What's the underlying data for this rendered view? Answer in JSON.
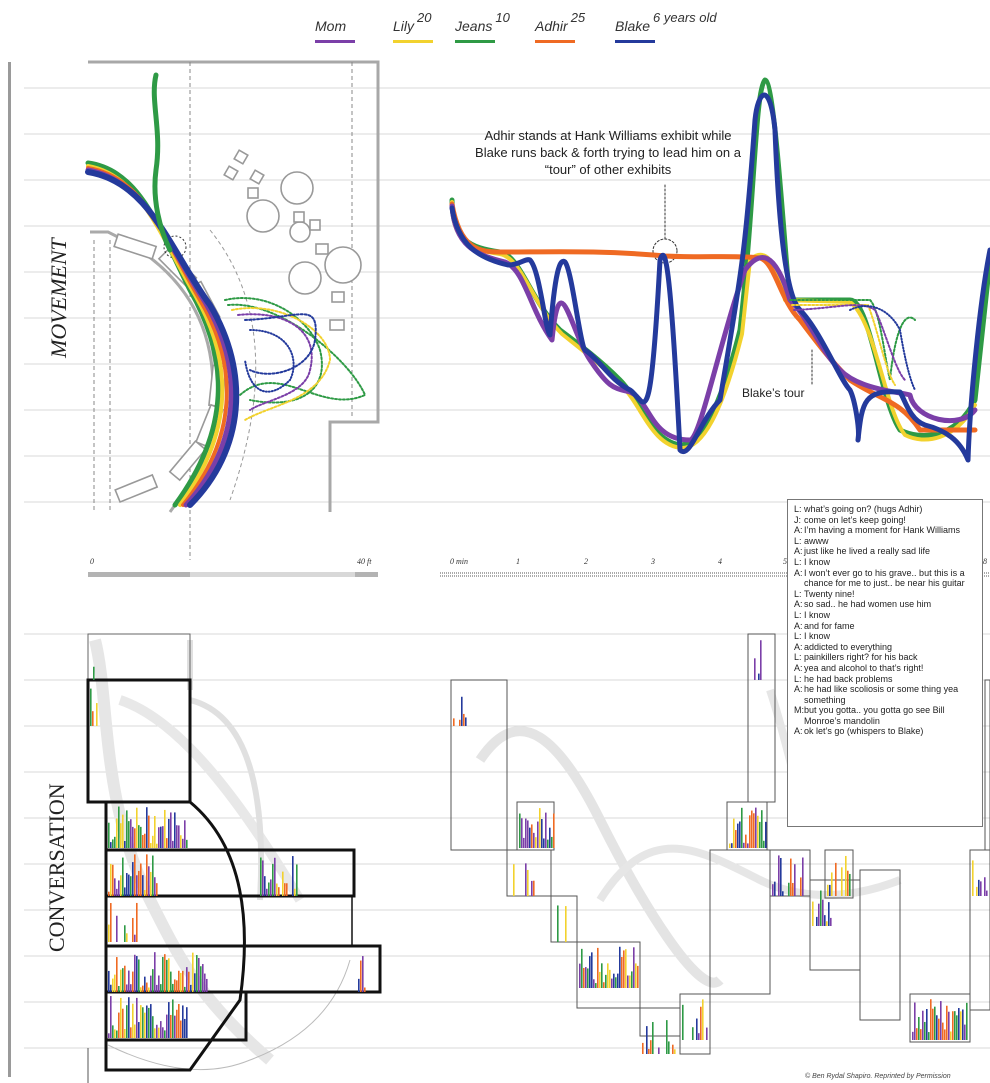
{
  "legend": [
    {
      "name": "Mom",
      "age": "",
      "color": "#7b3fa8"
    },
    {
      "name": "Lily",
      "age": "20",
      "color": "#f2d22e"
    },
    {
      "name": "Jeans",
      "age": "10",
      "color": "#2e9a45"
    },
    {
      "name": "Adhir",
      "age": "25",
      "color": "#ef6a23"
    },
    {
      "name": "Blake",
      "age": "6 years old",
      "color": "#243a9c"
    }
  ],
  "labels": {
    "movement": "MOVEMENT",
    "conversation": "CONVERSATION",
    "callout": "Adhir stands at Hank Williams exhibit while Blake runs back & forth trying to lead him on a “tour” of other exhibits",
    "tour": "Blake’s tour",
    "credit": "© Ben Rydal Shapiro. Reprinted by Permission"
  },
  "space_axis": {
    "start": "0",
    "end": "40 ft"
  },
  "time_axis": {
    "ticks": [
      "0 min",
      "1",
      "2",
      "3",
      "4",
      "5",
      "8"
    ]
  },
  "transcript": [
    {
      "s": "L:",
      "t": "what’s going on? (hugs Adhir)"
    },
    {
      "s": "J:",
      "t": "come on let’s keep going!"
    },
    {
      "s": "A:",
      "t": "I’m having a moment for Hank Williams"
    },
    {
      "s": "L:",
      "t": "awww"
    },
    {
      "s": "A:",
      "t": "just like he lived a really sad life"
    },
    {
      "s": "L:",
      "t": "I know"
    },
    {
      "s": "A:",
      "t": "I won’t ever go to his grave.. but this is a chance for me to just.. be near his guitar"
    },
    {
      "s": "L:",
      "t": "Twenty nine!"
    },
    {
      "s": "A:",
      "t": "so sad.. he had women use him"
    },
    {
      "s": "L:",
      "t": "I know"
    },
    {
      "s": "A:",
      "t": "and for fame"
    },
    {
      "s": "L:",
      "t": "I know"
    },
    {
      "s": "A:",
      "t": "addicted to everything"
    },
    {
      "s": "L:",
      "t": "painkillers right? for his back"
    },
    {
      "s": "A:",
      "t": "yea and alcohol to that’s right!"
    },
    {
      "s": "L:",
      "t": "he had back problems"
    },
    {
      "s": "A:",
      "t": "he had like scoliosis or some thing yea something"
    },
    {
      "s": "M:",
      "t": "but you gotta.. you gotta go see Bill Monroe’s mandolin"
    },
    {
      "s": "A:",
      "t": "ok let’s go (whispers to Blake)"
    }
  ],
  "colors": {
    "mom": "#7b3fa8",
    "lily": "#f2d22e",
    "jeans": "#2e9a45",
    "adhir": "#ef6a23",
    "blake": "#243a9c",
    "grid": "#d6d6d6",
    "wall": "#a8a8a8"
  }
}
